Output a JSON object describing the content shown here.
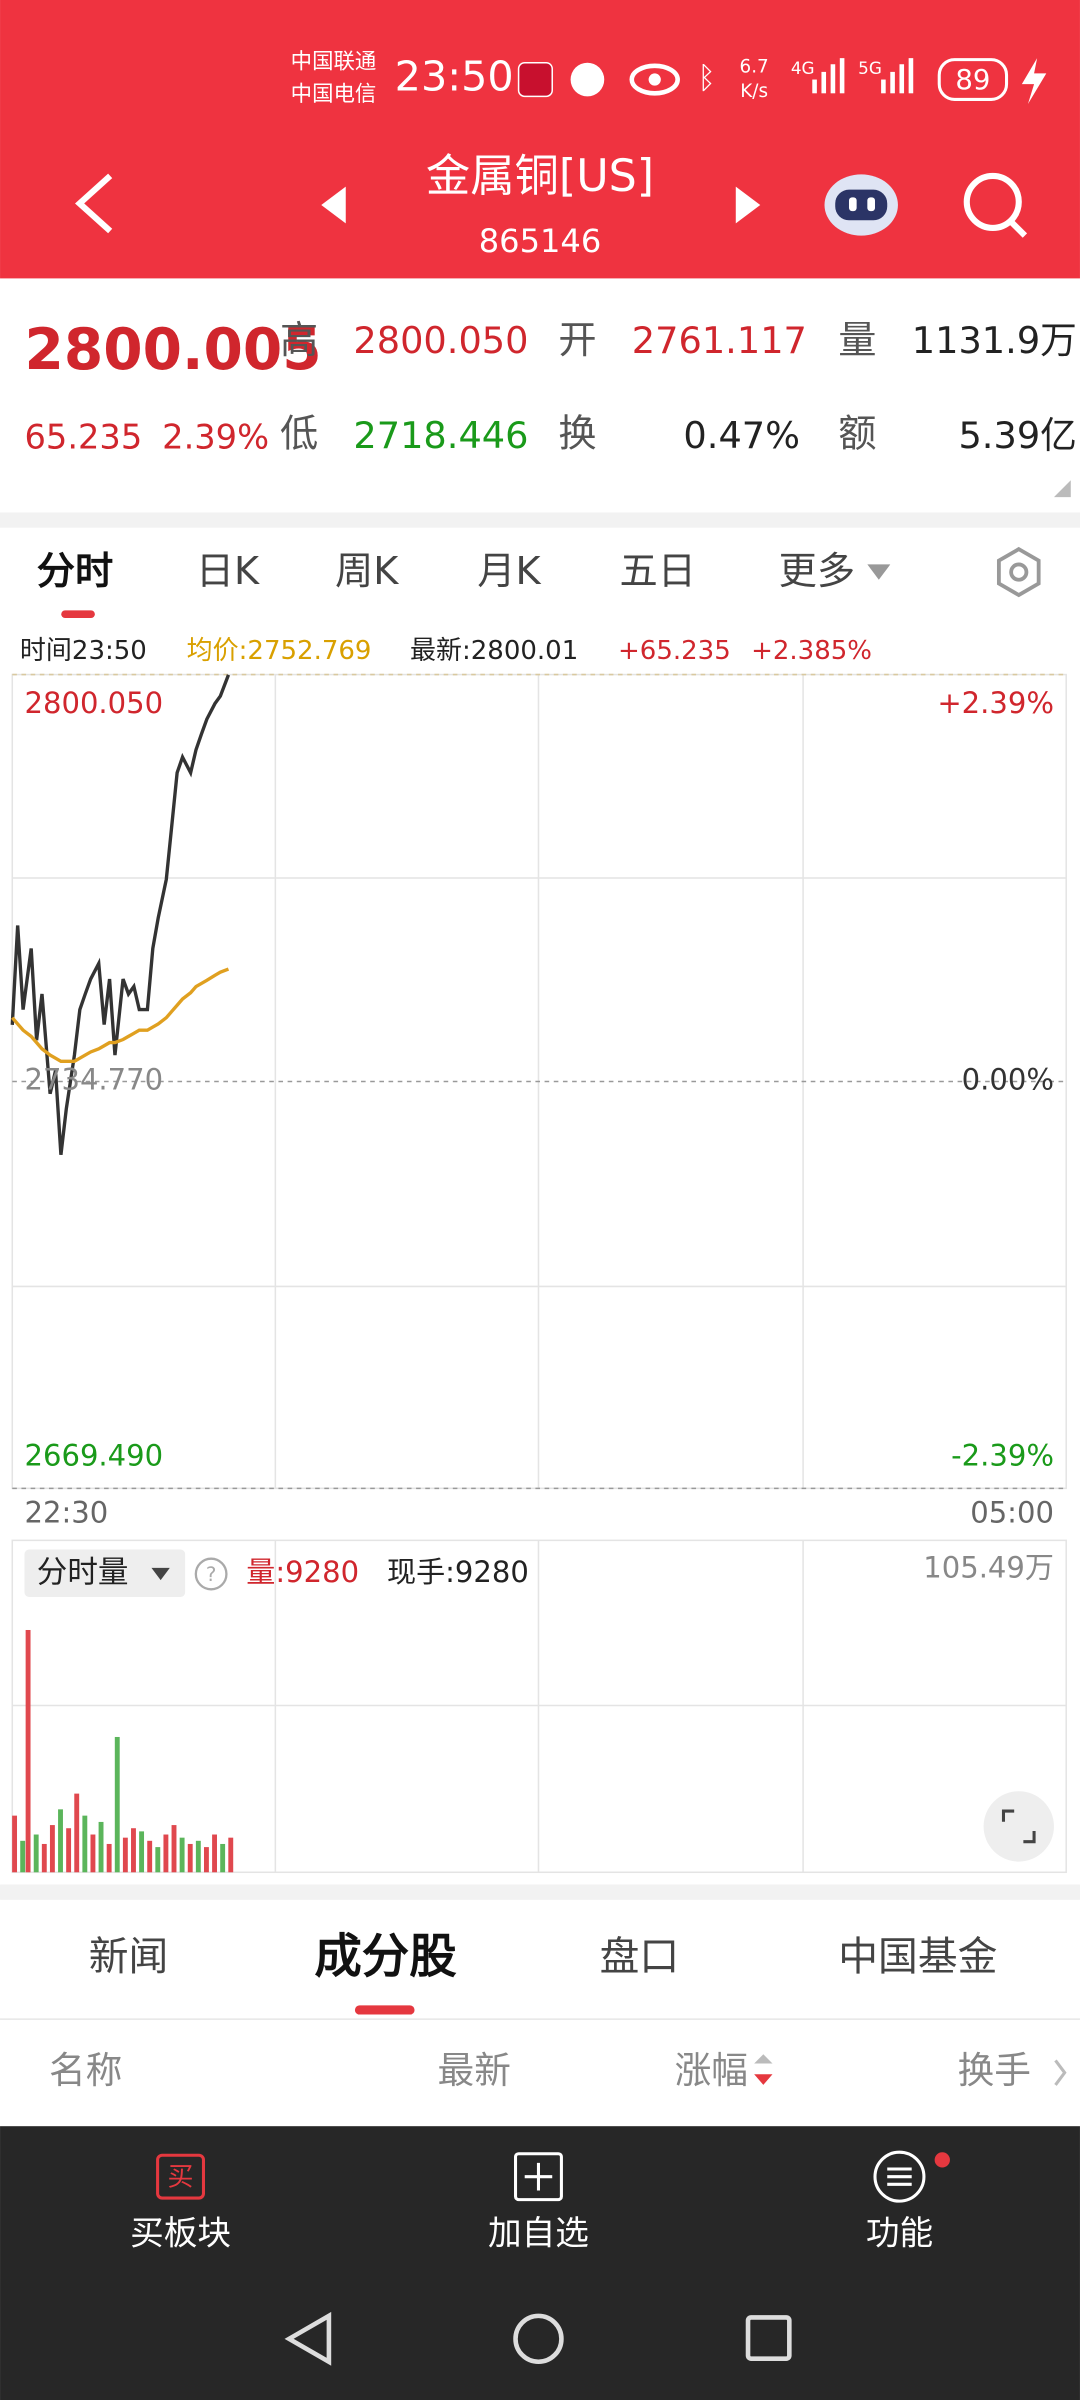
{
  "status_bar": {
    "carrier_1": "中国联通",
    "carrier_2": "中国电信",
    "time": "23:50",
    "speed_value": "6.7",
    "speed_unit": "K/s",
    "network_1": "4G",
    "network_2": "5G",
    "battery": "89"
  },
  "header": {
    "title": "金属铜[US]",
    "code": "865146"
  },
  "quote": {
    "price": "2800.005",
    "change": "65.235",
    "change_pct": "2.39%",
    "high_label": "高",
    "high": "2800.050",
    "open_label": "开",
    "open": "2761.117",
    "volume_label": "量",
    "volume": "1131.9万",
    "low_label": "低",
    "low": "2718.446",
    "turnover_label": "换",
    "turnover": "0.47%",
    "amount_label": "额",
    "amount": "5.39亿"
  },
  "tabs": [
    "分时",
    "日K",
    "周K",
    "月K",
    "五日",
    "更多"
  ],
  "chart_header": {
    "time": "时间23:50",
    "avg": "均价:2752.769",
    "latest": "最新:2800.01",
    "change": "+65.235",
    "change_pct": "+2.385%"
  },
  "chart_data": [
    {
      "type": "line",
      "x": [
        0,
        2,
        4,
        7,
        9,
        11,
        14,
        16,
        18,
        20,
        23,
        25,
        27,
        29,
        32,
        34,
        36,
        38,
        41,
        43,
        45,
        47,
        50,
        52,
        54,
        57,
        59,
        61,
        63,
        66,
        68,
        70,
        72,
        75,
        77,
        80
      ],
      "xlim": [
        0,
        390
      ],
      "xticks": [
        {
          "value": 0,
          "label": "22:30"
        },
        {
          "value": 390,
          "label": "05:00"
        }
      ],
      "ylim": [
        2669.49,
        2800.05
      ],
      "yticks": [
        {
          "value": 2800.05,
          "label": "2800.050"
        },
        {
          "value": 2734.77,
          "label": "2734.770"
        },
        {
          "value": 2669.49,
          "label": "2669.490"
        }
      ],
      "y2lim": [
        -2.39,
        2.39
      ],
      "y2ticks": [
        {
          "value": 2.39,
          "label": "+2.39%"
        },
        {
          "value": 0,
          "label": "0.00%"
        },
        {
          "value": -2.39,
          "label": "-2.39%"
        }
      ],
      "tick_colors": [
        "#d0262d",
        "#888888",
        "#1a9a1a"
      ],
      "series": [
        {
          "color": "#333333",
          "values": [
            2743.85,
            2759.8,
            2746.3,
            2756.1,
            2741.4,
            2748.8,
            2732.8,
            2736.5,
            2723.0,
            2730.4,
            2739.0,
            2746.3,
            2748.8,
            2751.2,
            2753.7,
            2743.9,
            2751.2,
            2739.0,
            2751.2,
            2748.8,
            2750.0,
            2746.3,
            2746.3,
            2756.1,
            2761.0,
            2767.2,
            2775.7,
            2784.3,
            2786.8,
            2784.3,
            2788.0,
            2790.5,
            2792.9,
            2795.4,
            2796.6,
            2800.0
          ]
        },
        {
          "color": "#e0a020",
          "values": [
            2745,
            2744,
            2743,
            2742,
            2741,
            2740,
            2739,
            2738.5,
            2738,
            2738,
            2738,
            2738.5,
            2739,
            2739.5,
            2740,
            2740.5,
            2741,
            2741,
            2741.5,
            2742,
            2742.5,
            2743,
            2743,
            2743.5,
            2744,
            2745,
            2746,
            2747,
            2748,
            2749,
            2750,
            2750.5,
            2751,
            2751.8,
            2752.3,
            2752.8
          ]
        }
      ]
    },
    {
      "type": "bar",
      "title": "分时量",
      "annotations": [
        "量:9280",
        "现手:9280"
      ],
      "x": [
        0,
        3,
        5,
        8,
        11,
        14,
        17,
        20,
        23,
        26,
        29,
        32,
        35,
        38,
        41,
        44,
        47,
        50,
        53,
        56,
        59,
        62,
        65,
        68,
        71,
        74,
        77,
        80
      ],
      "values": [
        18,
        10,
        77,
        12,
        9,
        15,
        20,
        14,
        25,
        18,
        12,
        16,
        9,
        43,
        11,
        14,
        13,
        10,
        8,
        12,
        15,
        11,
        9,
        10,
        8,
        12,
        9,
        11
      ],
      "colors": [
        "#e0484e",
        "#5bb55b",
        "#e0484e",
        "#5bb55b",
        "#e0484e",
        "#e0484e",
        "#5bb55b",
        "#e0484e",
        "#e0484e",
        "#5bb55b",
        "#e0484e",
        "#5bb55b",
        "#e0484e",
        "#5bb55b",
        "#e0484e",
        "#e0484e",
        "#5bb55b",
        "#e0484e",
        "#5bb55b",
        "#e0484e",
        "#e0484e",
        "#5bb55b",
        "#e0484e",
        "#5bb55b",
        "#e0484e",
        "#e0484e",
        "#5bb55b",
        "#e0484e"
      ],
      "xlim": [
        0,
        390
      ],
      "ylim": [
        0,
        105.49
      ],
      "yticks": [
        {
          "value": 105.49,
          "label": "105.49万"
        }
      ]
    }
  ],
  "content_tabs": [
    "新闻",
    "成分股",
    "盘口",
    "中国基金"
  ],
  "table_header": [
    "名称",
    "最新",
    "涨幅",
    "换手"
  ],
  "bottom_nav": {
    "buy_icon": "买",
    "items": [
      "买板块",
      "加自选",
      "功能"
    ]
  }
}
